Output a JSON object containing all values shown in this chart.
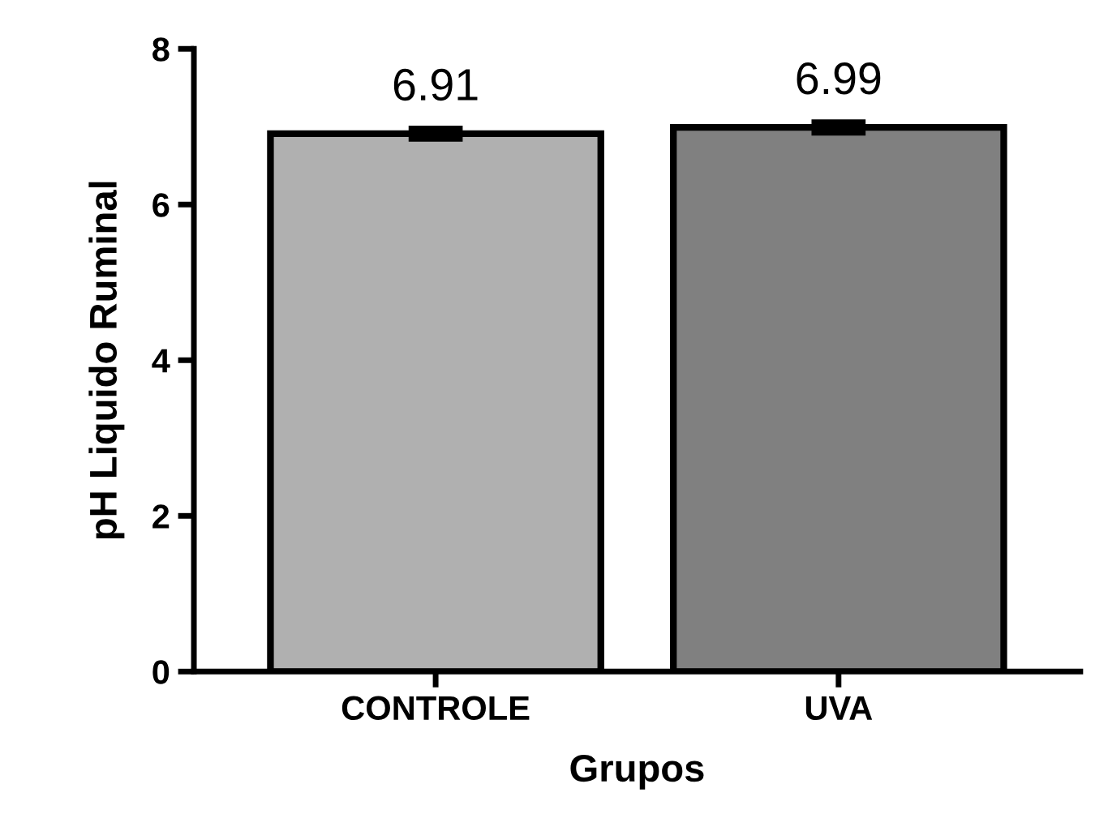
{
  "chart_data": {
    "type": "bar",
    "xlabel": "Grupos",
    "ylabel": "pH Liquido Ruminal",
    "categories": [
      "CONTROLE",
      "UVA"
    ],
    "values": [
      6.91,
      6.99
    ],
    "errors": [
      0.06,
      0.06
    ],
    "colors": [
      "#b0b0b0",
      "#808080"
    ],
    "ylim": [
      0,
      8
    ],
    "yticks": [
      0,
      2,
      4,
      6,
      8
    ],
    "data_labels": true,
    "grid": false,
    "legend": false
  }
}
